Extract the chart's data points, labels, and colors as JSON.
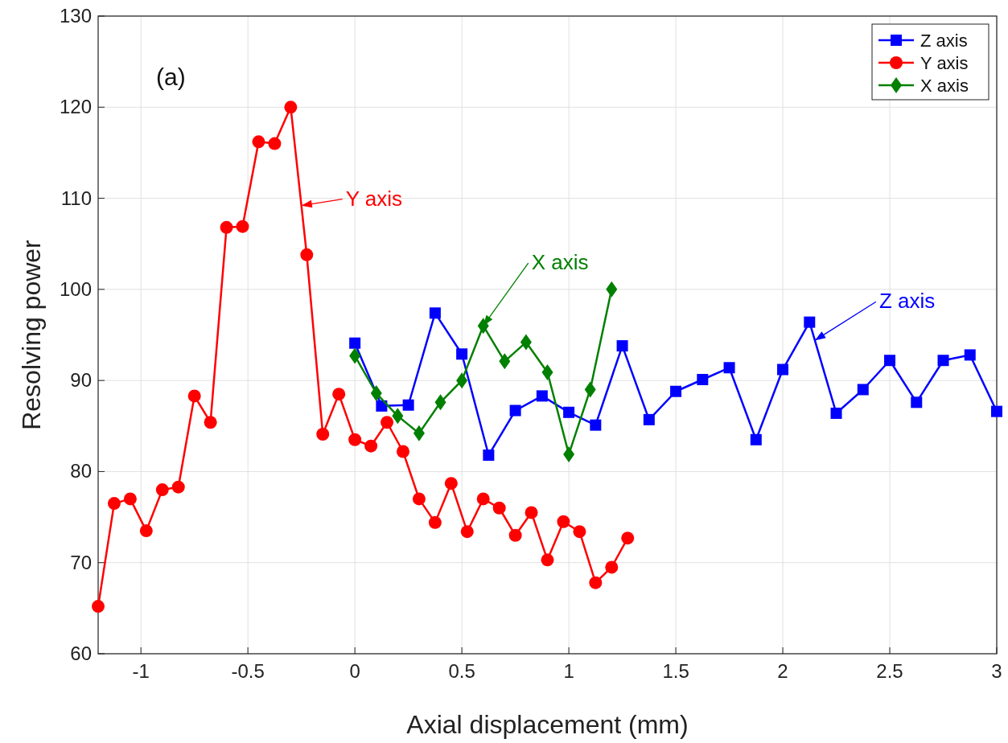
{
  "chart_data": {
    "type": "line",
    "xlabel": "Axial displacement (mm)",
    "ylabel": "Resolving power",
    "xlim": [
      -1.2,
      3
    ],
    "xticks": [
      -1,
      -0.5,
      0,
      0.5,
      1,
      1.5,
      2,
      2.5,
      3
    ],
    "ylim": [
      60,
      130
    ],
    "yticks": [
      60,
      70,
      80,
      90,
      100,
      110,
      120,
      130
    ],
    "grid": true,
    "legend": "top right",
    "annotations": [
      "(a)",
      {
        "text": "Y axis",
        "x": -0.25,
        "y": 109.2
      },
      {
        "text": "X axis",
        "x": 0.6,
        "y": 96
      },
      {
        "text": "Z axis",
        "x": 2.15,
        "y": 94.4
      }
    ],
    "series": [
      {
        "name": "Z axis",
        "color": "#0000ff",
        "marker": "square",
        "x": [
          0,
          0.125,
          0.25,
          0.375,
          0.5,
          0.625,
          0.75,
          0.875,
          1,
          1.125,
          1.25,
          1.375,
          1.5,
          1.625,
          1.75,
          1.875,
          2,
          2.125,
          2.25,
          2.375,
          2.5,
          2.625,
          2.75,
          2.875,
          3
        ],
        "values": [
          94.1,
          87.2,
          87.3,
          97.4,
          92.9,
          81.8,
          86.7,
          88.3,
          86.5,
          85.1,
          93.8,
          85.7,
          88.8,
          90.1,
          91.4,
          83.5,
          91.2,
          96.4,
          86.4,
          89,
          92.2,
          87.6,
          92.2,
          92.8,
          86.6
        ]
      },
      {
        "name": "Y axis",
        "color": "#ff0000",
        "marker": "circle",
        "x": [
          -1.2,
          -1.125,
          -1.05,
          -0.975,
          -0.9,
          -0.825,
          -0.75,
          -0.675,
          -0.6,
          -0.525,
          -0.45,
          -0.375,
          -0.3,
          -0.225,
          -0.15,
          -0.075,
          0,
          0.075,
          0.15,
          0.225,
          0.3,
          0.375,
          0.45,
          0.525,
          0.6,
          0.675,
          0.75,
          0.825,
          0.9,
          0.975,
          1.05,
          1.125,
          1.2,
          1.275
        ],
        "values": [
          65.2,
          76.5,
          77,
          73.5,
          78,
          78.3,
          88.3,
          85.4,
          106.8,
          106.9,
          116.2,
          116,
          120,
          103.8,
          84.1,
          88.5,
          83.5,
          82.8,
          85.4,
          82.2,
          77,
          74.4,
          78.7,
          73.4,
          77,
          76,
          73,
          75.5,
          70.3,
          74.5,
          73.4,
          67.8,
          69.5,
          72.7
        ]
      },
      {
        "name": "X axis",
        "color": "#008000",
        "marker": "diamond",
        "x": [
          0,
          0.1,
          0.2,
          0.3,
          0.4,
          0.5,
          0.6,
          0.7,
          0.8,
          0.9,
          1,
          1.1,
          1.2
        ],
        "values": [
          92.7,
          88.6,
          86.1,
          84.2,
          87.6,
          90,
          96,
          92.1,
          94.2,
          90.9,
          81.9,
          89,
          100
        ]
      }
    ]
  }
}
